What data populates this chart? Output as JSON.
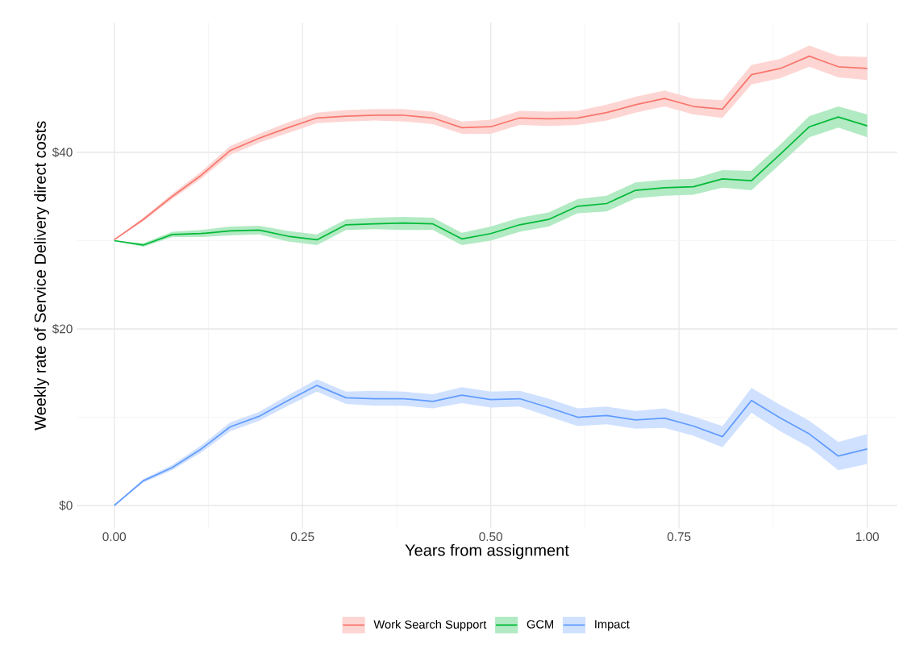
{
  "chart_data": {
    "type": "line",
    "xlabel": "Years from assignment",
    "ylabel": "Weekly rate of Service Delivery direct costs",
    "x": [
      0,
      0.0385,
      0.0769,
      0.1154,
      0.1538,
      0.1923,
      0.2308,
      0.2692,
      0.3077,
      0.3462,
      0.3846,
      0.4231,
      0.4615,
      0.5,
      0.5385,
      0.5769,
      0.6154,
      0.6538,
      0.6923,
      0.7308,
      0.7692,
      0.8077,
      0.8462,
      0.8846,
      0.9231,
      0.9615,
      1
    ],
    "series": [
      {
        "name": "Work Search Support",
        "color": "#f8766d",
        "values": [
          30.1,
          32.4,
          35.0,
          37.4,
          40.2,
          41.6,
          42.8,
          43.9,
          44.1,
          44.2,
          44.2,
          43.9,
          42.8,
          42.9,
          43.9,
          43.8,
          43.9,
          44.5,
          45.4,
          46.1,
          45.2,
          44.9,
          48.8,
          49.5,
          50.9,
          49.7,
          49.5
        ],
        "lower": [
          30.1,
          32.2,
          34.7,
          37.0,
          39.7,
          41.1,
          42.2,
          43.3,
          43.5,
          43.6,
          43.5,
          43.2,
          42.1,
          42.1,
          43.1,
          43.0,
          43.1,
          43.6,
          44.5,
          45.2,
          44.3,
          43.9,
          47.7,
          48.4,
          49.7,
          48.5,
          48.2
        ],
        "upper": [
          30.1,
          32.6,
          35.3,
          37.8,
          40.7,
          42.1,
          43.4,
          44.5,
          44.8,
          44.9,
          44.9,
          44.6,
          43.5,
          43.7,
          44.7,
          44.6,
          44.7,
          45.4,
          46.3,
          47.0,
          46.1,
          45.9,
          49.9,
          50.6,
          52.1,
          50.9,
          50.8
        ]
      },
      {
        "name": "GCM",
        "color": "#00ba38",
        "values": [
          30.0,
          29.5,
          30.7,
          30.8,
          31.1,
          31.2,
          30.5,
          30.1,
          31.8,
          31.9,
          32.0,
          31.9,
          30.2,
          30.8,
          31.8,
          32.4,
          33.9,
          34.2,
          35.7,
          36.0,
          36.1,
          37.0,
          36.8,
          39.8,
          42.9,
          44.0,
          43.0
        ],
        "lower": [
          30.0,
          29.3,
          30.4,
          30.4,
          30.6,
          30.7,
          29.9,
          29.5,
          31.2,
          31.3,
          31.2,
          31.2,
          29.5,
          30.0,
          31.0,
          31.6,
          33.1,
          33.3,
          34.8,
          35.1,
          35.2,
          36.0,
          35.7,
          38.7,
          41.7,
          42.8,
          41.7
        ],
        "upper": [
          30.0,
          29.7,
          31.0,
          31.2,
          31.6,
          31.7,
          31.1,
          30.7,
          32.4,
          32.6,
          32.7,
          32.6,
          30.9,
          31.6,
          32.6,
          33.2,
          34.7,
          35.1,
          36.6,
          36.9,
          37.0,
          38.0,
          37.9,
          40.9,
          44.1,
          45.2,
          44.3
        ]
      },
      {
        "name": "Impact",
        "color": "#619cff",
        "values": [
          0.0,
          2.8,
          4.3,
          6.4,
          8.9,
          10.1,
          11.9,
          13.6,
          12.2,
          12.1,
          12.1,
          11.8,
          12.5,
          12.0,
          12.1,
          11.1,
          10.0,
          10.2,
          9.7,
          9.9,
          9.0,
          7.8,
          11.9,
          9.9,
          8.1,
          5.6,
          6.4
        ],
        "lower": [
          0.0,
          2.6,
          4.0,
          6.0,
          8.4,
          9.6,
          11.3,
          12.9,
          11.5,
          11.3,
          11.3,
          11.0,
          11.6,
          11.1,
          11.2,
          10.1,
          9.0,
          9.2,
          8.7,
          8.8,
          7.9,
          6.6,
          10.5,
          8.4,
          6.6,
          4.0,
          4.7
        ],
        "upper": [
          0.0,
          3.0,
          4.6,
          6.8,
          9.4,
          10.6,
          12.5,
          14.3,
          12.9,
          13.0,
          12.9,
          12.6,
          13.4,
          12.9,
          13.0,
          12.1,
          11.0,
          11.2,
          10.7,
          11.0,
          10.1,
          9.0,
          13.3,
          11.4,
          9.6,
          7.2,
          8.1
        ]
      }
    ],
    "xlim": [
      -0.05,
      1.04
    ],
    "ylim": [
      -2.6,
      54.7
    ],
    "xticks": [
      {
        "value": 0,
        "label": "0.00"
      },
      {
        "value": 0.25,
        "label": "0.25"
      },
      {
        "value": 0.5,
        "label": "0.50"
      },
      {
        "value": 0.75,
        "label": "0.75"
      },
      {
        "value": 1,
        "label": "1.00"
      }
    ],
    "yticks": [
      {
        "value": 0,
        "label": "$0"
      },
      {
        "value": 20,
        "label": "$20"
      },
      {
        "value": 40,
        "label": "$40"
      }
    ],
    "grid": true,
    "legend": "bottom",
    "marker": "none",
    "line_style": "solid"
  }
}
